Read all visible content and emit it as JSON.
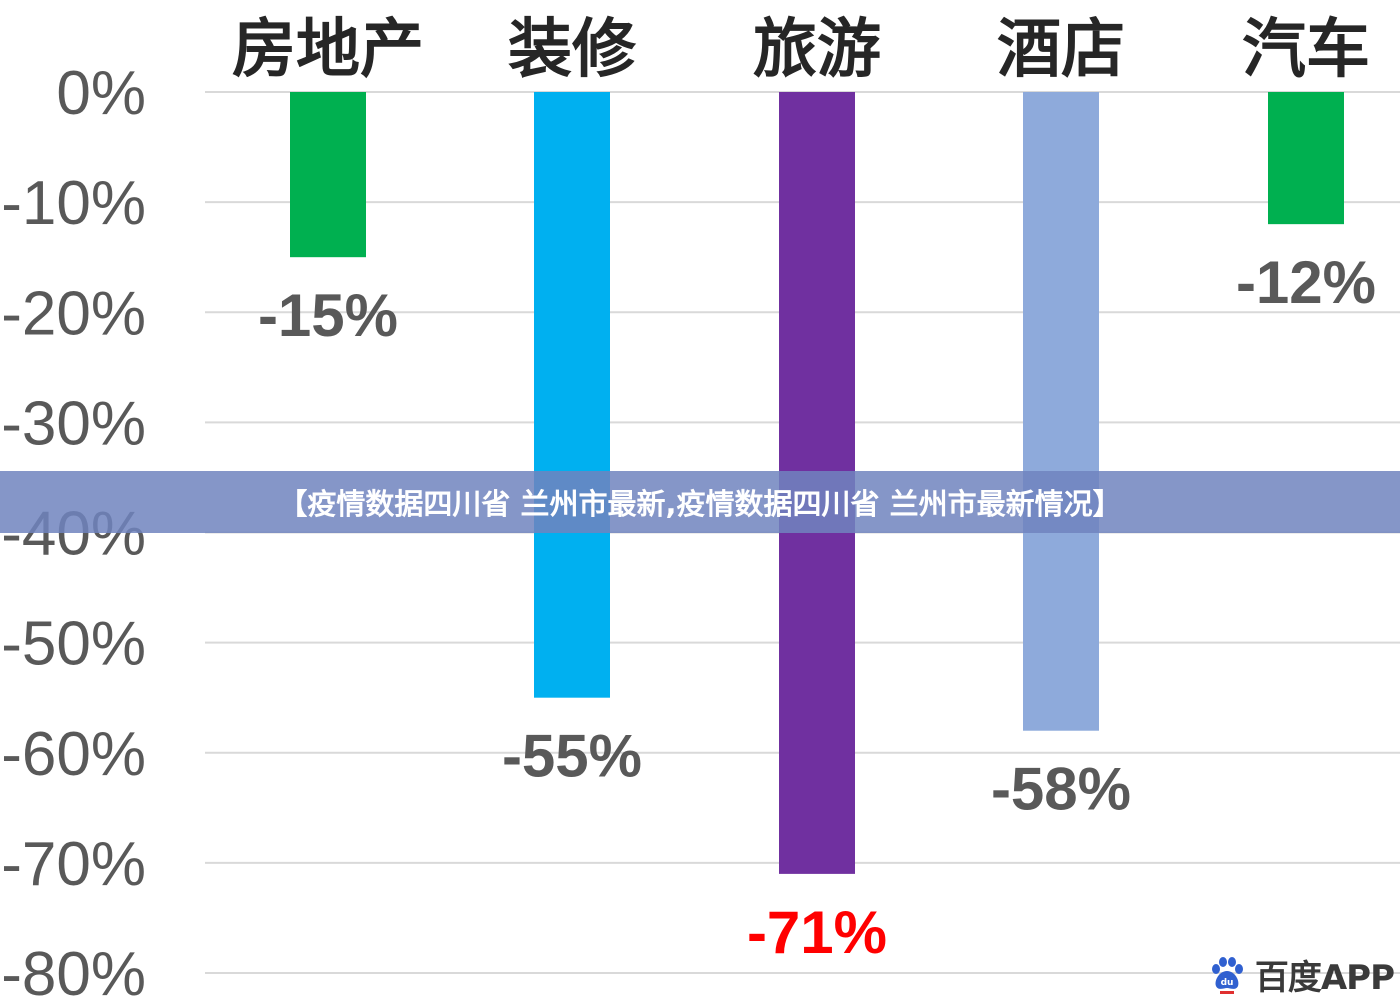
{
  "chart_data": {
    "type": "bar",
    "categories": [
      "房地产",
      "装修",
      "旅游",
      "酒店",
      "汽车"
    ],
    "values": [
      -15,
      -55,
      -71,
      -58,
      -12
    ],
    "value_labels": [
      "-15%",
      "-55%",
      "-71%",
      "-58%",
      "-12%"
    ],
    "bar_colors": [
      "#00b050",
      "#00b0f0",
      "#7030a0",
      "#8eaadb",
      "#00b050"
    ],
    "label_colors": [
      "#595959",
      "#595959",
      "#ff0000",
      "#595959",
      "#595959"
    ],
    "y_ticks": [
      0,
      -10,
      -20,
      -30,
      -40,
      -50,
      -60,
      -70,
      -80
    ],
    "y_tick_labels": [
      "0%",
      "-10%",
      "-20%",
      "-30%",
      "-40%",
      "-50%",
      "-60%",
      "-70%",
      "-80%"
    ],
    "ylim": [
      -80,
      0
    ],
    "category_axis_position": "top",
    "grid": true
  },
  "banner": {
    "text": "【疫情数据四川省 兰州市最新,疫情数据四川省 兰州市最新情况】"
  },
  "watermark": {
    "text": "百度APP",
    "logo_icon": "baidu-paw-icon"
  }
}
